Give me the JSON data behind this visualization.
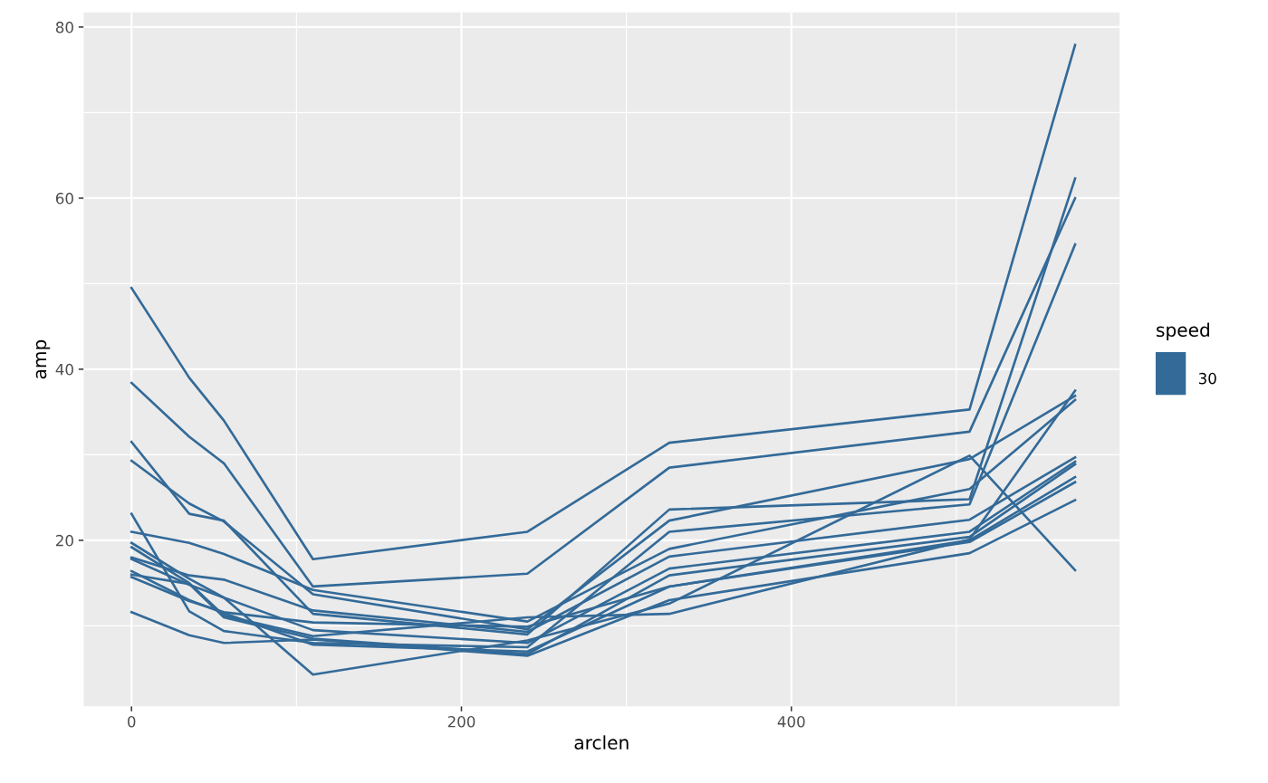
{
  "chart_data": {
    "type": "line",
    "xlabel": "arclen",
    "ylabel": "amp",
    "legend_title": "speed",
    "x": [
      0,
      35,
      56,
      110,
      240,
      326,
      508,
      572
    ],
    "xlim": [
      -29,
      599
    ],
    "ylim": [
      0.6,
      81.7
    ],
    "xticks": [
      0,
      {
        "value": 100,
        "label": null
      },
      200,
      {
        "value": 300,
        "label": null
      },
      400,
      {
        "value": 500,
        "label": null
      }
    ],
    "yticks": [
      {
        "value": 10,
        "label": null
      },
      20,
      {
        "value": 30,
        "label": null
      },
      40,
      {
        "value": 50,
        "label": null
      },
      60,
      {
        "value": 70,
        "label": null
      },
      80
    ],
    "grid": true,
    "legend": "right",
    "marker": "none",
    "line_style": "solid",
    "series": [
      {
        "name": "30",
        "color": "#336a98",
        "values": [
          49.5,
          39.0,
          34.0,
          17.8,
          21.0,
          31.4,
          35.3,
          77.9
        ]
      },
      {
        "color": "#336a98",
        "values": [
          38.4,
          32.1,
          29.0,
          14.6,
          16.1,
          28.5,
          32.7,
          60.0
        ]
      },
      {
        "color": "#336a98",
        "values": [
          31.5,
          23.1,
          22.3,
          11.4,
          9.0,
          23.6,
          24.8,
          62.3
        ]
      },
      {
        "color": "#336a98",
        "values": [
          29.3,
          24.3,
          22.2,
          13.7,
          9.6,
          22.3,
          29.5,
          36.9
        ]
      },
      {
        "color": "#336a98",
        "values": [
          23.1,
          11.7,
          9.4,
          8.0,
          7.5,
          21.0,
          24.2,
          54.6
        ]
      },
      {
        "color": "#336a98",
        "values": [
          21.0,
          19.7,
          18.4,
          14.2,
          10.5,
          19.0,
          26.0,
          36.4
        ]
      },
      {
        "color": "#336a98",
        "values": [
          19.7,
          15.5,
          13.3,
          4.3,
          8.3,
          12.6,
          29.9,
          16.5
        ]
      },
      {
        "color": "#336a98",
        "values": [
          19.2,
          15.0,
          11.2,
          8.8,
          11.0,
          11.4,
          20.1,
          37.5
        ]
      },
      {
        "color": "#336a98",
        "values": [
          18.0,
          15.9,
          15.4,
          11.8,
          9.3,
          18.1,
          22.4,
          29.7
        ]
      },
      {
        "color": "#336a98",
        "values": [
          17.8,
          14.8,
          13.3,
          9.5,
          8.0,
          16.7,
          21.0,
          29.2
        ]
      },
      {
        "color": "#336a98",
        "values": [
          16.0,
          14.9,
          11.0,
          8.5,
          6.7,
          15.9,
          20.4,
          28.9
        ]
      },
      {
        "color": "#336a98",
        "values": [
          15.7,
          12.9,
          11.6,
          10.4,
          9.9,
          14.6,
          19.8,
          26.8
        ]
      },
      {
        "color": "#336a98",
        "values": [
          16.4,
          13.0,
          11.5,
          7.8,
          7.0,
          14.6,
          20.0,
          27.4
        ]
      },
      {
        "color": "#336a98",
        "values": [
          11.6,
          8.9,
          8.0,
          8.4,
          6.5,
          13.0,
          18.5,
          24.7
        ]
      }
    ]
  }
}
